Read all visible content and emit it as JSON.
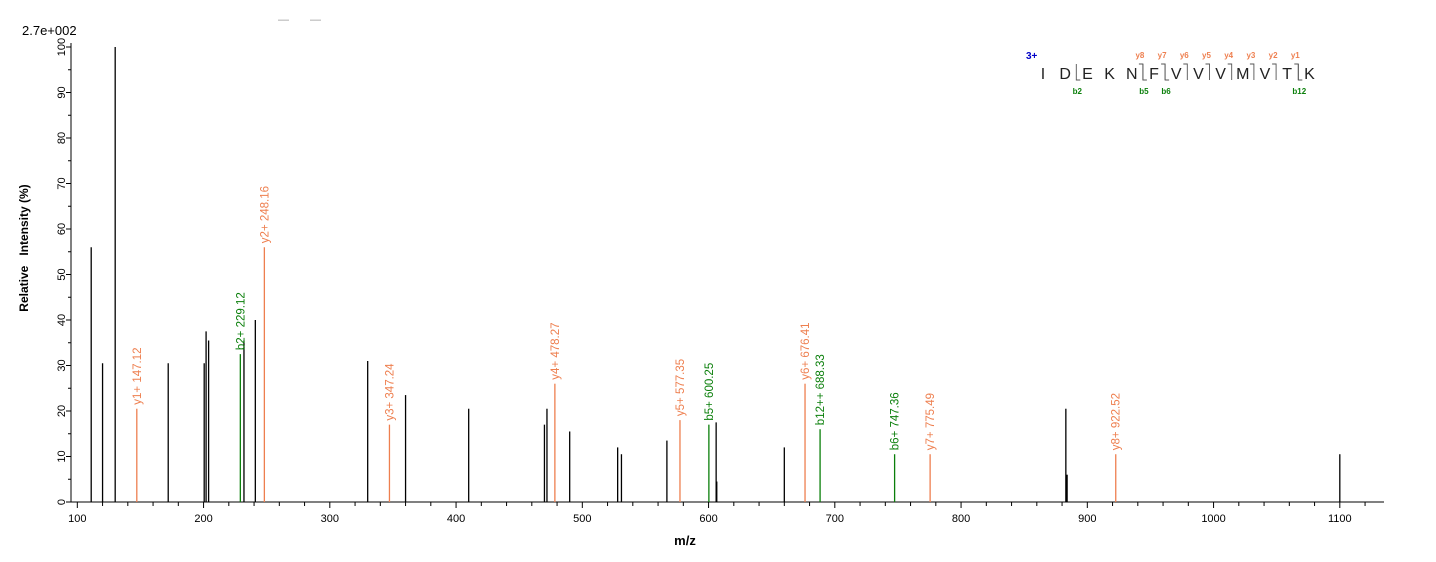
{
  "chart_data": {
    "type": "bar",
    "title": "",
    "max_intensity_label": "2.7e+002",
    "xlabel": "m/z",
    "ylabel": "Relative   Intensity (%)",
    "xlim": [
      95,
      1135
    ],
    "ylim": [
      0,
      100
    ],
    "x_ticks": [
      "100",
      "200",
      "300",
      "400",
      "500",
      "600",
      "700",
      "800",
      "900",
      "1000",
      "1100"
    ],
    "y_ticks": [
      "0",
      "10",
      "20",
      "30",
      "40",
      "50",
      "60",
      "70",
      "80",
      "90",
      "100"
    ],
    "colors": {
      "unlabeled": "#000000",
      "y_ion": "#ee7f4f",
      "b_ion": "#0a7f0a",
      "charge": "#0000c8"
    },
    "peaks": [
      {
        "mz": 111,
        "intensity": 56
      },
      {
        "mz": 120,
        "intensity": 30.5
      },
      {
        "mz": 130,
        "intensity": 100
      },
      {
        "mz": 147.12,
        "intensity": 20.5,
        "ion": "y",
        "label": "y1+ 147.12"
      },
      {
        "mz": 172,
        "intensity": 30.5
      },
      {
        "mz": 200.5,
        "intensity": 30.5
      },
      {
        "mz": 202,
        "intensity": 37.5
      },
      {
        "mz": 204,
        "intensity": 35.5
      },
      {
        "mz": 229.12,
        "intensity": 32.5,
        "ion": "b",
        "label": "b2+ 229.12"
      },
      {
        "mz": 232,
        "intensity": 35.5
      },
      {
        "mz": 241,
        "intensity": 40
      },
      {
        "mz": 248.16,
        "intensity": 56,
        "ion": "y",
        "label": "y2+ 248.16"
      },
      {
        "mz": 330,
        "intensity": 31
      },
      {
        "mz": 347.24,
        "intensity": 17,
        "ion": "y",
        "label": "y3+ 347.24"
      },
      {
        "mz": 360,
        "intensity": 23.5
      },
      {
        "mz": 410,
        "intensity": 20.5
      },
      {
        "mz": 470,
        "intensity": 17
      },
      {
        "mz": 472,
        "intensity": 20.5
      },
      {
        "mz": 478.27,
        "intensity": 26,
        "ion": "y",
        "label": "y4+ 478.27"
      },
      {
        "mz": 490,
        "intensity": 15.5
      },
      {
        "mz": 528,
        "intensity": 12
      },
      {
        "mz": 531,
        "intensity": 10.5
      },
      {
        "mz": 567,
        "intensity": 13.5
      },
      {
        "mz": 577.35,
        "intensity": 18,
        "ion": "y",
        "label": "y5+ 577.35"
      },
      {
        "mz": 600.25,
        "intensity": 17,
        "ion": "b",
        "label": "b5+ 600.25"
      },
      {
        "mz": 606,
        "intensity": 17.5
      },
      {
        "mz": 606.5,
        "intensity": 4.5
      },
      {
        "mz": 660,
        "intensity": 12
      },
      {
        "mz": 676.41,
        "intensity": 26,
        "ion": "y",
        "label": "y6+ 676.41"
      },
      {
        "mz": 688.33,
        "intensity": 16,
        "ion": "b",
        "label": "b12++ 688.33"
      },
      {
        "mz": 747.36,
        "intensity": 10.5,
        "ion": "b",
        "label": "b6+ 747.36"
      },
      {
        "mz": 775.49,
        "intensity": 10.5,
        "ion": "y",
        "label": "y7+ 775.49"
      },
      {
        "mz": 883,
        "intensity": 20.5
      },
      {
        "mz": 884,
        "intensity": 6
      },
      {
        "mz": 922.52,
        "intensity": 10.5,
        "ion": "y",
        "label": "y8+ 922.52"
      },
      {
        "mz": 1100,
        "intensity": 10.5
      }
    ],
    "sequence": {
      "charge": "3+",
      "residues": [
        "I",
        "D",
        "E",
        "K",
        "N",
        "F",
        "V",
        "V",
        "V",
        "M",
        "V",
        "T",
        "K"
      ],
      "y_marks": [
        {
          "after": 5,
          "label": "y8"
        },
        {
          "after": 6,
          "label": "y7"
        },
        {
          "after": 7,
          "label": "y6"
        },
        {
          "after": 8,
          "label": "y5"
        },
        {
          "after": 9,
          "label": "y4"
        },
        {
          "after": 10,
          "label": "y3"
        },
        {
          "after": 11,
          "label": "y2"
        },
        {
          "after": 12,
          "label": "y1"
        }
      ],
      "b_marks": [
        {
          "after": 2,
          "label": "b2"
        },
        {
          "after": 5,
          "label": "b5"
        },
        {
          "after": 6,
          "label": "b6"
        },
        {
          "after": 12,
          "label": "b12"
        }
      ]
    }
  }
}
